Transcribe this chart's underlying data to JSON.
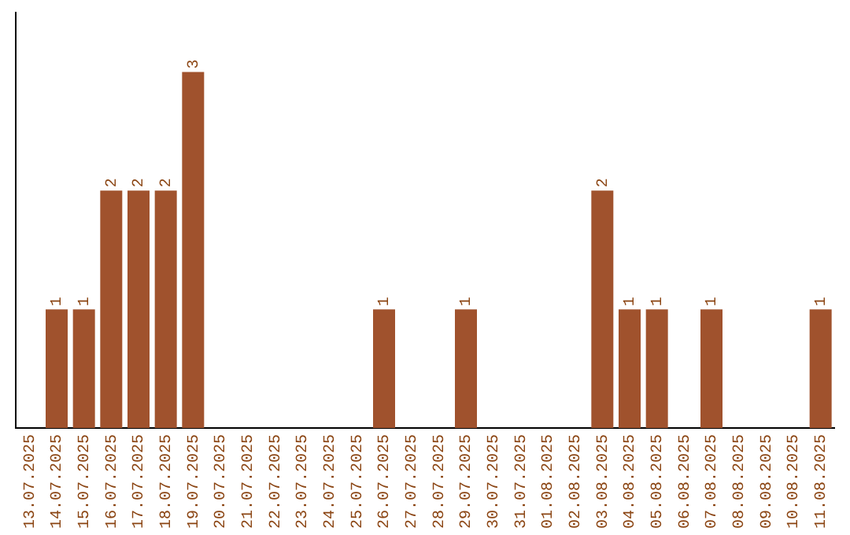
{
  "chart_data": {
    "type": "bar",
    "categories": [
      "13.07.2025",
      "14.07.2025",
      "15.07.2025",
      "16.07.2025",
      "17.07.2025",
      "18.07.2025",
      "19.07.2025",
      "20.07.2025",
      "21.07.2025",
      "22.07.2025",
      "23.07.2025",
      "24.07.2025",
      "25.07.2025",
      "26.07.2025",
      "27.07.2025",
      "28.07.2025",
      "29.07.2025",
      "30.07.2025",
      "31.07.2025",
      "01.08.2025",
      "02.08.2025",
      "03.08.2025",
      "04.08.2025",
      "05.08.2025",
      "06.08.2025",
      "07.08.2025",
      "08.08.2025",
      "09.08.2025",
      "10.08.2025",
      "11.08.2025"
    ],
    "values": [
      0,
      1,
      1,
      2,
      2,
      2,
      3,
      0,
      0,
      0,
      0,
      0,
      0,
      1,
      0,
      0,
      1,
      0,
      0,
      0,
      0,
      2,
      1,
      1,
      0,
      1,
      0,
      0,
      0,
      1
    ],
    "value_labels": [
      null,
      "1",
      "1",
      "2",
      "2",
      "2",
      "3",
      null,
      null,
      null,
      null,
      null,
      null,
      "1",
      null,
      null,
      "1",
      null,
      null,
      null,
      null,
      "2",
      "1",
      "1",
      null,
      "1",
      null,
      null,
      null,
      "1"
    ],
    "color": "#a0522d",
    "grid": false,
    "legend": false
  }
}
